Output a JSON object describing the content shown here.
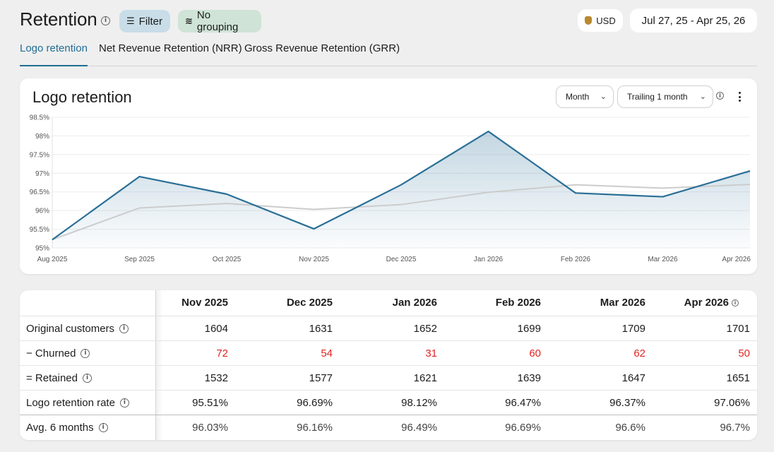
{
  "header": {
    "title": "Retention",
    "filter_label": "Filter",
    "grouping_label": "No grouping",
    "currency_label": "USD",
    "date_range": "Jul 27, 25 - Apr 25, 26"
  },
  "tabs": [
    {
      "label": "Logo retention",
      "active": true
    },
    {
      "label": "Net Revenue Retention (NRR)",
      "active": false
    },
    {
      "label": "Gross Revenue Retention (GRR)",
      "active": false
    }
  ],
  "chart_card": {
    "title": "Logo retention",
    "period_select": "Month",
    "trailing_select": "Trailing 1 month"
  },
  "chart_data": {
    "type": "area",
    "title": "Logo retention",
    "x": [
      "Aug 2025",
      "Sep 2025",
      "Oct 2025",
      "Nov 2025",
      "Dec 2025",
      "Jan 2026",
      "Feb 2026",
      "Mar 2026",
      "Apr 2026"
    ],
    "yticks": [
      "95%",
      "95.5%",
      "96%",
      "96.5%",
      "97%",
      "97.5%",
      "98%",
      "98.5%"
    ],
    "ylim": [
      95,
      98.5
    ],
    "grid": true,
    "series": [
      {
        "values": [
          95.22,
          96.91,
          96.44,
          95.51,
          96.69,
          98.12,
          96.47,
          96.37,
          97.06
        ],
        "color": "#2a6f97",
        "fill": true
      },
      {
        "values": [
          95.22,
          96.07,
          96.19,
          96.03,
          96.16,
          96.49,
          96.69,
          96.6,
          96.7
        ],
        "color": "#cccccc",
        "fill": false
      }
    ]
  },
  "table": {
    "columns": [
      "Nov 2025",
      "Dec 2025",
      "Jan 2026",
      "Feb 2026",
      "Mar 2026",
      "Apr 2026"
    ],
    "rows": [
      {
        "label": "Original customers",
        "values": [
          "1604",
          "1631",
          "1652",
          "1699",
          "1709",
          "1701"
        ]
      },
      {
        "label": "− Churned",
        "values": [
          "72",
          "54",
          "31",
          "60",
          "62",
          "50"
        ]
      },
      {
        "label": "= Retained",
        "values": [
          "1532",
          "1577",
          "1621",
          "1639",
          "1647",
          "1651"
        ]
      },
      {
        "label": "Logo retention rate",
        "values": [
          "95.51%",
          "96.69%",
          "98.12%",
          "96.47%",
          "96.37%",
          "97.06%"
        ]
      },
      {
        "label": "Avg. 6 months",
        "values": [
          "96.03%",
          "96.16%",
          "96.49%",
          "96.69%",
          "96.6%",
          "96.7%"
        ]
      }
    ]
  },
  "colors": {
    "accent": "#226e94",
    "churn": "#e02424",
    "filter_bg": "#c8dde8",
    "grouping_bg": "#cfe3d6"
  },
  "icons": {
    "info": "info-icon",
    "filter": "filter-icon",
    "grouping": "no-grouping-icon",
    "currency": "money-bag-icon",
    "chevron": "chevron-down-icon",
    "more": "more-vertical-icon"
  }
}
